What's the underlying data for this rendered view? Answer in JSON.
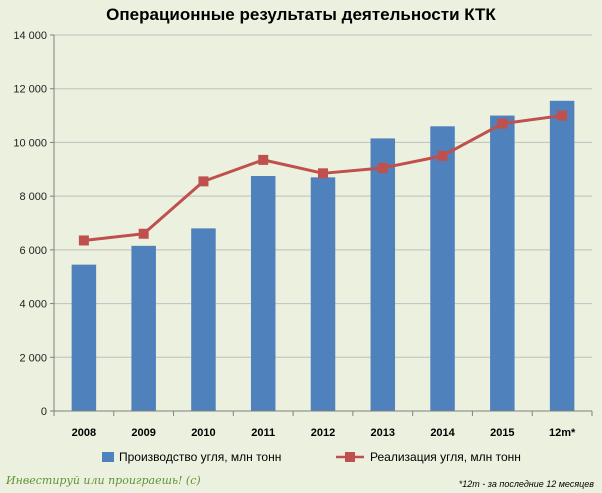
{
  "chart_data": {
    "type": "bar+line",
    "title": "Операционные результаты деятельности КТК",
    "categories": [
      "2008",
      "2009",
      "2010",
      "2011",
      "2012",
      "2013",
      "2014",
      "2015",
      "12m*"
    ],
    "series": [
      {
        "name": "Производство угля, млн тонн",
        "kind": "bar",
        "color": "#4F81BD",
        "values": [
          5450,
          6150,
          6800,
          8750,
          8700,
          10150,
          10600,
          11000,
          11550
        ]
      },
      {
        "name": "Реализация угля, млн тонн",
        "kind": "line",
        "color": "#C0504D",
        "values": [
          6350,
          6600,
          8550,
          9350,
          8850,
          9050,
          9500,
          10700,
          11000
        ]
      }
    ],
    "y_ticks": [
      "0",
      "2 000",
      "4 000",
      "6 000",
      "8 000",
      "10 000",
      "12 000",
      "14 000"
    ],
    "ylim": [
      0,
      14000
    ],
    "grid": true,
    "legend_position": "bottom"
  },
  "watermark": "Инвестируй или проиграешь! (с)",
  "footnote": "*12m - за последние 12 месяцев",
  "colors": {
    "background": "#EBF1DE",
    "grid": "#BFBFBF",
    "bar": "#4F81BD",
    "line": "#C0504D"
  }
}
